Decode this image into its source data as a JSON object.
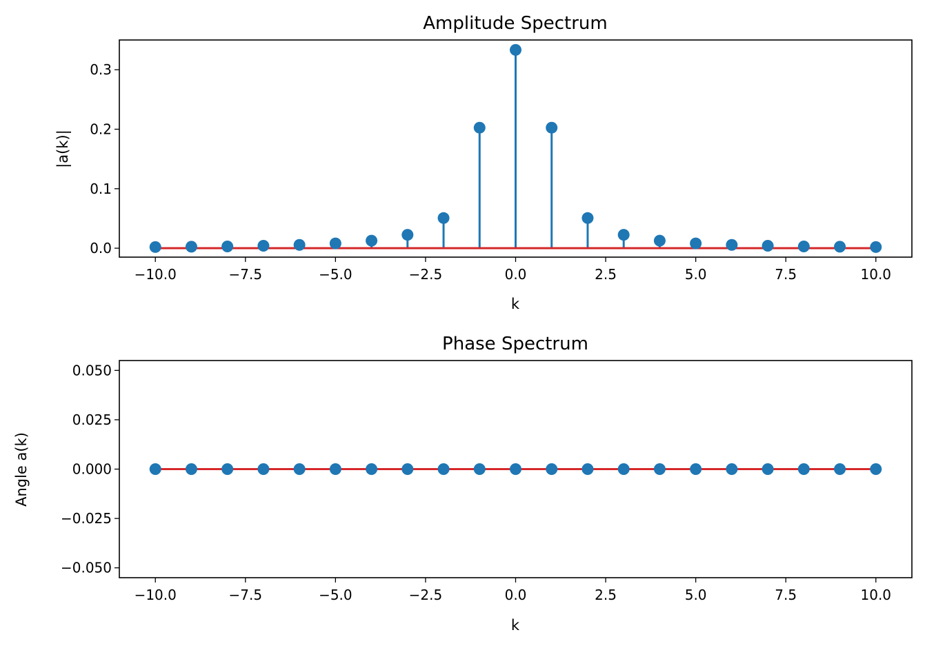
{
  "colors": {
    "stem": "#1f77b4",
    "baseline": "#d62728",
    "axes": "#000000"
  },
  "chart_data": [
    {
      "type": "stem",
      "title": "Amplitude Spectrum",
      "xlabel": "k",
      "ylabel": "|a(k)|",
      "xlim": [
        -11,
        11
      ],
      "ylim": [
        -0.015,
        0.35
      ],
      "x_ticks": [
        -10,
        -7.5,
        -5,
        -2.5,
        0,
        2.5,
        5,
        7.5,
        10
      ],
      "x_tick_labels": [
        "−10.0",
        "−7.5",
        "−5.0",
        "−2.5",
        "0.0",
        "2.5",
        "5.0",
        "7.5",
        "10.0"
      ],
      "y_ticks": [
        0,
        0.1,
        0.2,
        0.3
      ],
      "y_tick_labels": [
        "0.0",
        "0.1",
        "0.2",
        "0.3"
      ],
      "baseline": 0,
      "x": [
        -10,
        -9,
        -8,
        -7,
        -6,
        -5,
        -4,
        -3,
        -2,
        -1,
        0,
        1,
        2,
        3,
        4,
        5,
        6,
        7,
        8,
        9,
        10
      ],
      "values": [
        0.002,
        0.0025,
        0.003,
        0.0041,
        0.0056,
        0.0081,
        0.0127,
        0.0225,
        0.0507,
        0.2026,
        0.3333,
        0.2026,
        0.0507,
        0.0225,
        0.0127,
        0.0081,
        0.0056,
        0.0041,
        0.003,
        0.0025,
        0.002
      ]
    },
    {
      "type": "stem",
      "title": "Phase Spectrum",
      "xlabel": "k",
      "ylabel": "Angle a(k)",
      "xlim": [
        -11,
        11
      ],
      "ylim": [
        -0.055,
        0.055
      ],
      "x_ticks": [
        -10,
        -7.5,
        -5,
        -2.5,
        0,
        2.5,
        5,
        7.5,
        10
      ],
      "x_tick_labels": [
        "−10.0",
        "−7.5",
        "−5.0",
        "−2.5",
        "0.0",
        "2.5",
        "5.0",
        "7.5",
        "10.0"
      ],
      "y_ticks": [
        0.05,
        0.025,
        0,
        -0.025,
        -0.05
      ],
      "y_tick_labels": [
        "0.050",
        "0.025",
        "0.000",
        "−0.025",
        "−0.050"
      ],
      "baseline": 0,
      "x": [
        -10,
        -9,
        -8,
        -7,
        -6,
        -5,
        -4,
        -3,
        -2,
        -1,
        0,
        1,
        2,
        3,
        4,
        5,
        6,
        7,
        8,
        9,
        10
      ],
      "values": [
        0,
        0,
        0,
        0,
        0,
        0,
        0,
        0,
        0,
        0,
        0,
        0,
        0,
        0,
        0,
        0,
        0,
        0,
        0,
        0,
        0
      ]
    }
  ]
}
